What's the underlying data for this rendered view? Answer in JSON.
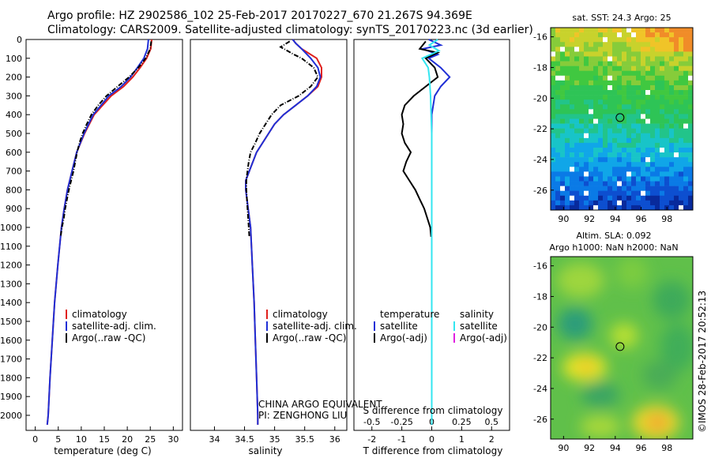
{
  "header": {
    "line1": "Argo profile: HZ 2902586_102 25-Feb-2017 20170227_670 21.267S 94.369E",
    "line2": "Climatology: CARS2009. Satellite-adjusted climatology: synTS_20170223.nc (3d earlier)"
  },
  "colors": {
    "climatology": "#e0201c",
    "satellite_clim": "#1f2fd6",
    "argo": "#000000",
    "salinity_satellite": "#33e6f0",
    "salinity_argo": "#e020e0",
    "marker": "#000000"
  },
  "notes": {
    "float_owner_line1": "CHINA ARGO EQUIVALENT",
    "float_owner_line2": "PI: ZENGHONG LIU",
    "copyright": "©IMOS 28-Feb-2017 20:52:13"
  },
  "maps": {
    "sst": {
      "title": "sat. SST: 24.3 Argo: 25",
      "x_ticks": [
        "90",
        "92",
        "94",
        "96",
        "98"
      ],
      "y_ticks": [
        "-16",
        "-18",
        "-20",
        "-22",
        "-24",
        "-26"
      ],
      "xlim": [
        89,
        100
      ],
      "ylim": [
        -27.3,
        -15.4
      ],
      "argo_position": {
        "lon": 94.369,
        "lat": -21.267
      }
    },
    "sla": {
      "title_line1": "Altim. SLA: 0.092",
      "title_line2": "Argo h1000: NaN h2000: NaN",
      "x_ticks": [
        "90",
        "92",
        "94",
        "96",
        "98"
      ],
      "y_ticks": [
        "-16",
        "-18",
        "-20",
        "-22",
        "-24",
        "-26"
      ],
      "xlim": [
        89,
        100
      ],
      "ylim": [
        -27.3,
        -15.4
      ],
      "argo_position": {
        "lon": 94.369,
        "lat": -21.267
      }
    }
  },
  "chart_data": [
    {
      "type": "line",
      "xlabel": "temperature (deg C)",
      "ylabel": "",
      "xlim": [
        -2,
        32
      ],
      "ylim": [
        2080,
        0
      ],
      "x_ticks": [
        "0",
        "5",
        "10",
        "15",
        "20",
        "25",
        "30"
      ],
      "y_ticks": [
        "0",
        "100",
        "200",
        "300",
        "400",
        "500",
        "600",
        "700",
        "800",
        "900",
        "1000",
        "1100",
        "1200",
        "1300",
        "1400",
        "1500",
        "1600",
        "1700",
        "1800",
        "1900",
        "2000"
      ],
      "legend": [
        "climatology",
        "satellite-adj. clim.",
        "Argo(..raw -QC)"
      ],
      "series": [
        {
          "name": "climatology",
          "depth": [
            0,
            50,
            100,
            150,
            200,
            250,
            300,
            400,
            500,
            600,
            700,
            800,
            900,
            1000,
            1200,
            1400,
            1600,
            1800,
            2000,
            2050
          ],
          "values": [
            25.3,
            25.1,
            24.2,
            22.8,
            21.2,
            19.2,
            16.5,
            12.8,
            10.7,
            9.0,
            8.0,
            7.0,
            6.3,
            5.7,
            4.9,
            4.2,
            3.7,
            3.2,
            2.8,
            2.6
          ]
        },
        {
          "name": "satellite-adj. clim.",
          "depth": [
            0,
            50,
            100,
            150,
            200,
            250,
            300,
            400,
            500,
            600,
            700,
            800,
            900,
            1000,
            1200,
            1400,
            1600,
            1800,
            2000,
            2050
          ],
          "values": [
            24.6,
            24.4,
            23.6,
            22.2,
            20.7,
            18.7,
            16.0,
            12.6,
            10.6,
            9.0,
            8.0,
            7.0,
            6.3,
            5.7,
            4.9,
            4.2,
            3.7,
            3.2,
            2.8,
            2.6
          ]
        },
        {
          "name": "Argo(..raw -QC)",
          "depth": [
            10,
            50,
            100,
            150,
            200,
            250,
            300,
            350,
            400,
            450,
            500,
            550,
            600,
            650,
            700,
            750,
            800,
            850,
            900,
            950,
            1000,
            1050
          ],
          "values": [
            25.2,
            25.0,
            24.0,
            22.4,
            20.4,
            17.9,
            15.5,
            13.7,
            12.2,
            11.2,
            10.3,
            9.6,
            9.1,
            8.7,
            8.3,
            7.8,
            7.3,
            6.9,
            6.5,
            6.2,
            5.8,
            5.5
          ]
        }
      ]
    },
    {
      "type": "line",
      "xlabel": "salinity",
      "ylabel": "",
      "xlim": [
        33.6,
        36.2
      ],
      "ylim": [
        2080,
        0
      ],
      "x_ticks": [
        "34",
        "34.5",
        "35",
        "35.5",
        "36"
      ],
      "legend": [
        "climatology",
        "satellite-adj. clim.",
        "Argo(..raw -QC)"
      ],
      "series": [
        {
          "name": "climatology",
          "depth": [
            0,
            20,
            50,
            100,
            150,
            200,
            250,
            300,
            350,
            400,
            450,
            500,
            600,
            700,
            750,
            800,
            900,
            1000,
            1200,
            1400,
            1600,
            1800,
            2000,
            2050
          ],
          "values": [
            35.3,
            35.35,
            35.45,
            35.7,
            35.78,
            35.78,
            35.72,
            35.55,
            35.35,
            35.15,
            35.0,
            34.9,
            34.7,
            34.58,
            34.52,
            34.52,
            34.56,
            34.6,
            34.63,
            34.66,
            34.68,
            34.7,
            34.72,
            34.72
          ]
        },
        {
          "name": "satellite-adj. clim.",
          "depth": [
            0,
            20,
            50,
            100,
            150,
            200,
            250,
            300,
            350,
            400,
            450,
            500,
            600,
            700,
            750,
            800,
            900,
            1000,
            1200,
            1400,
            1600,
            1800,
            2000,
            2050
          ],
          "values": [
            35.3,
            35.35,
            35.45,
            35.6,
            35.72,
            35.76,
            35.7,
            35.55,
            35.35,
            35.15,
            35.0,
            34.9,
            34.7,
            34.58,
            34.52,
            34.52,
            34.56,
            34.6,
            34.63,
            34.66,
            34.68,
            34.7,
            34.72,
            34.72
          ]
        },
        {
          "name": "Argo(..raw -QC)",
          "depth": [
            10,
            40,
            80,
            100,
            150,
            200,
            250,
            300,
            350,
            400,
            450,
            500,
            550,
            600,
            650,
            700,
            750,
            800,
            850,
            900,
            950,
            1000,
            1050
          ],
          "values": [
            35.25,
            35.1,
            35.32,
            35.45,
            35.65,
            35.72,
            35.6,
            35.4,
            35.1,
            34.95,
            34.85,
            34.75,
            34.68,
            34.6,
            34.57,
            34.55,
            34.53,
            34.53,
            34.54,
            34.55,
            34.56,
            34.57,
            34.58
          ]
        }
      ]
    },
    {
      "type": "line",
      "xlabel": "T difference from climatology",
      "x_ticks": [
        "-2",
        "-1",
        "0",
        "1",
        "2"
      ],
      "top_label": "S difference from climatology",
      "s_ticks": [
        "-0.5",
        "-0.25",
        "0",
        "0.25",
        "0.5"
      ],
      "xlim": [
        -2.6,
        2.6
      ],
      "ylim": [
        2080,
        0
      ],
      "legend": {
        "temperature_heading": "temperature",
        "salinity_heading": "salinity",
        "items": [
          "satellite",
          "Argo(-adj)",
          "satellite",
          "Argo(-adj)"
        ]
      },
      "series": [
        {
          "name": "temperature satellite",
          "depth": [
            0,
            30,
            50,
            80,
            100,
            150,
            200,
            250,
            300,
            400,
            600,
            800,
            1000,
            1200,
            1500,
            1800,
            2050
          ],
          "values": [
            -0.1,
            0.3,
            -0.3,
            0.2,
            -0.1,
            0.3,
            0.6,
            0.3,
            0.1,
            0.0,
            0.0,
            0.0,
            0.0,
            0.0,
            0.0,
            0.0,
            0.0
          ]
        },
        {
          "name": "temperature Argo(-adj)",
          "depth": [
            10,
            50,
            70,
            100,
            150,
            200,
            300,
            350,
            400,
            450,
            500,
            550,
            600,
            650,
            700,
            750,
            800,
            850,
            900,
            950,
            1000,
            1050
          ],
          "values": [
            -0.2,
            -0.4,
            0.2,
            -0.2,
            0.1,
            0.2,
            -0.6,
            -0.9,
            -1.0,
            -0.95,
            -1.0,
            -0.9,
            -0.7,
            -0.85,
            -0.95,
            -0.75,
            -0.55,
            -0.4,
            -0.25,
            -0.15,
            -0.05,
            -0.02
          ]
        },
        {
          "name": "salinity satellite",
          "depth": [
            0,
            30,
            60,
            100,
            150,
            200,
            300,
            500,
            800,
            1200,
            1600,
            2050
          ],
          "values": [
            0.05,
            -0.02,
            0.06,
            -0.08,
            -0.03,
            -0.02,
            -0.01,
            0.0,
            0.0,
            0.0,
            0.0,
            0.0
          ]
        }
      ]
    }
  ]
}
